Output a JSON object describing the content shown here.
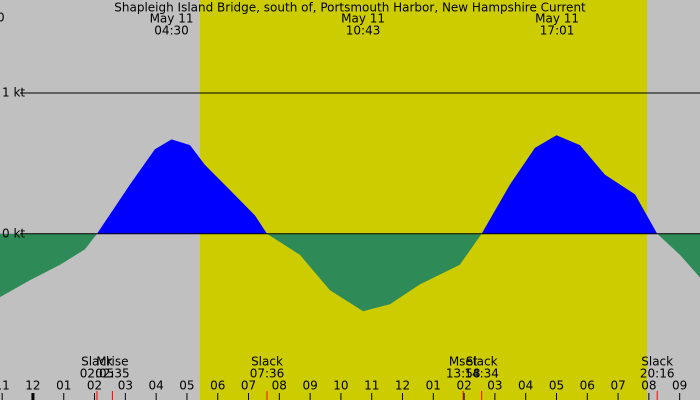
{
  "chart_data": {
    "type": "area",
    "title": "Shapleigh Island Bridge, south of, Portsmouth Harbor, New Hampshire Current",
    "corner_label": "0",
    "x": [
      -1.07,
      -0.1,
      0.88,
      1.69,
      2.08,
      3.15,
      3.96,
      4.5,
      5.1,
      5.58,
      6.4,
      7.21,
      7.6,
      8.67,
      9.64,
      10.72,
      11.59,
      12.56,
      13.86,
      14.57,
      15.49,
      16.3,
      17.0,
      17.76,
      18.57,
      19.55,
      20.27,
      21.01,
      21.66
    ],
    "values": [
      -0.45,
      -0.33,
      -0.22,
      -0.11,
      0,
      0.35,
      0.6,
      0.67,
      0.63,
      0.49,
      0.31,
      0.13,
      0,
      -0.15,
      -0.4,
      -0.55,
      -0.5,
      -0.36,
      -0.22,
      0,
      0.35,
      0.61,
      0.7,
      0.63,
      0.42,
      0.28,
      0,
      -0.15,
      -0.31
    ],
    "flood_color": "#0000ff",
    "ebb_color": "#2e8b57",
    "background_color": "#c0c0c0",
    "daylight_color": "#cccc00",
    "daylight": [
      5.42,
      19.94
    ],
    "xlim": [
      -1.07,
      21.66
    ],
    "ylim": [
      -1.18,
      1.66
    ],
    "yticks": [
      {
        "value": 1,
        "label": "1 kt"
      },
      {
        "value": 0,
        "label": "0 kt"
      }
    ],
    "xticks": [
      {
        "value": -1,
        "label": "11"
      },
      {
        "value": 0,
        "label": "12"
      },
      {
        "value": 1,
        "label": "01"
      },
      {
        "value": 2,
        "label": "02"
      },
      {
        "value": 3,
        "label": "03"
      },
      {
        "value": 4,
        "label": "04"
      },
      {
        "value": 5,
        "label": "05"
      },
      {
        "value": 6,
        "label": "06"
      },
      {
        "value": 7,
        "label": "07"
      },
      {
        "value": 8,
        "label": "08"
      },
      {
        "value": 9,
        "label": "09"
      },
      {
        "value": 10,
        "label": "10"
      },
      {
        "value": 11,
        "label": "11"
      },
      {
        "value": 12,
        "label": "12"
      },
      {
        "value": 13,
        "label": "01"
      },
      {
        "value": 14,
        "label": "02"
      },
      {
        "value": 15,
        "label": "03"
      },
      {
        "value": 16,
        "label": "04"
      },
      {
        "value": 17,
        "label": "05"
      },
      {
        "value": 18,
        "label": "06"
      },
      {
        "value": 19,
        "label": "07"
      },
      {
        "value": 20,
        "label": "08"
      },
      {
        "value": 21,
        "label": "09"
      }
    ],
    "peaks": [
      {
        "date": "May 11",
        "time": "04:30",
        "x": 4.5
      },
      {
        "date": "May 11",
        "time": "10:43",
        "x": 10.72
      },
      {
        "date": "May 11",
        "time": "17:01",
        "x": 17.02
      }
    ],
    "events": [
      {
        "name": "Slack",
        "time": "02:05",
        "x": 2.08
      },
      {
        "name": "Mrise",
        "time": "02:35",
        "x": 2.58
      },
      {
        "name": "Slack",
        "time": "07:36",
        "x": 7.6
      },
      {
        "name": "Mset",
        "time": "13:58",
        "x": 13.97
      },
      {
        "name": "Slack",
        "time": "14:34",
        "x": 14.57
      },
      {
        "name": "Slack",
        "time": "20:16",
        "x": 20.27
      }
    ]
  }
}
